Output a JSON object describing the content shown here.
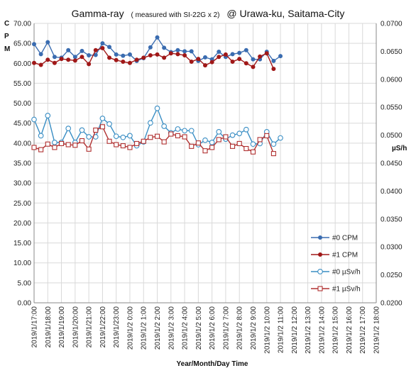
{
  "chart_data": {
    "type": "line",
    "title_prefix": "Gamma-ray",
    "title_note": "( measured with SI-22G x 2)",
    "title_suffix": "@ Urawa-ku, Saitama-City",
    "xlabel": "Year/Month/Day  Time",
    "ylabel_left": [
      "C",
      "P",
      "M"
    ],
    "ylabel_right": "µS/h",
    "ylim_left": [
      0,
      70
    ],
    "ylim_right": [
      0.02,
      0.07
    ],
    "grid": true,
    "legend_position": "lower-right",
    "colors": {
      "cpm0": "#3a6cb0",
      "cpm1": "#a01818",
      "usv0": "#3a8ec4",
      "usv1": "#b03030",
      "grid": "#d9d9d9",
      "axis": "#888888"
    },
    "x_tick_labels": [
      "2019/1/17:00",
      "2019/1/18:00",
      "2019/1/19:00",
      "2019/1/20:00",
      "2019/1/21:00",
      "2019/1/22:00",
      "2019/1/23:00",
      "2019/1/2 0:00",
      "2019/1/2 1:00",
      "2019/1/2 2:00",
      "2019/1/2 3:00",
      "2019/1/2 4:00",
      "2019/1/2 5:00",
      "2019/1/2 6:00",
      "2019/1/2 7:00",
      "2019/1/2 8:00",
      "2019/1/2 9:00",
      "2019/1/2 10:00",
      "2019/1/2 11:00",
      "2019/1/2 12:00",
      "2019/1/2 13:00",
      "2019/1/2 14:00",
      "2019/1/2 15:00",
      "2019/1/2 16:00",
      "2019/1/2 17:00",
      "2019/1/2 18:00"
    ],
    "y_left_ticks": [
      "0.00",
      "5.00",
      "10.00",
      "15.00",
      "20.00",
      "25.00",
      "30.00",
      "35.00",
      "40.00",
      "45.00",
      "50.00",
      "55.00",
      "60.00",
      "65.00",
      "70.00"
    ],
    "y_right_ticks": [
      "0.0200",
      "0.0250",
      "0.0300",
      "0.0350",
      "0.0400",
      "0.0450",
      "0.0500",
      "0.0550",
      "0.0600",
      "0.0650",
      "0.0700"
    ],
    "x_hours": [
      0,
      1,
      2,
      3,
      4,
      5,
      6,
      7,
      8,
      9,
      10,
      11,
      12,
      13,
      14,
      15,
      16,
      17,
      18,
      19,
      20,
      21,
      22,
      23,
      24,
      25,
      26,
      27,
      28,
      29,
      30,
      31,
      32,
      33,
      34,
      35,
      36,
      37,
      38,
      39,
      40,
      41,
      42,
      43,
      44,
      45,
      46,
      47,
      48,
      49,
      50
    ],
    "series": [
      {
        "name": "#0 CPM",
        "axis": "left",
        "marker": "dot",
        "values": [
          64.8,
          62.3,
          65.3,
          61.6,
          61.4,
          63.3,
          61.6,
          63.1,
          62.0,
          62.1,
          65.0,
          64.1,
          62.2,
          61.9,
          62.2,
          60.6,
          61.3,
          64.0,
          66.5,
          63.9,
          62.8,
          63.3,
          63.0,
          63.0,
          60.6,
          61.5,
          61.0,
          62.9,
          61.6,
          62.3,
          62.6,
          63.3,
          61.0,
          61.0,
          62.9,
          60.6,
          61.8
        ]
      },
      {
        "name": "#1 CPM",
        "axis": "left",
        "marker": "dot",
        "values": [
          60.1,
          59.6,
          60.9,
          60.1,
          61.1,
          60.9,
          60.7,
          61.6,
          59.8,
          63.3,
          63.8,
          61.4,
          60.8,
          60.4,
          60.1,
          60.9,
          61.4,
          62.0,
          62.2,
          61.4,
          62.5,
          62.3,
          62.0,
          60.4,
          61.1,
          59.5,
          60.3,
          61.6,
          62.2,
          60.4,
          61.1,
          60.0,
          59.1,
          61.7,
          62.5,
          58.6
        ]
      },
      {
        "name": "#0 µSv/h",
        "axis": "right",
        "marker": "circle",
        "values": [
          0.0528,
          0.0499,
          0.0535,
          0.0487,
          0.0487,
          0.0512,
          0.0487,
          0.0509,
          0.0497,
          0.0497,
          0.053,
          0.052,
          0.0498,
          0.0496,
          0.0499,
          0.0481,
          0.0488,
          0.0522,
          0.0548,
          0.0516,
          0.0504,
          0.0511,
          0.0508,
          0.0508,
          0.0483,
          0.0491,
          0.0487,
          0.0506,
          0.0493,
          0.05,
          0.0503,
          0.051,
          0.0484,
          0.0485,
          0.0506,
          0.0484,
          0.0495
        ]
      },
      {
        "name": "#1 µSv/h",
        "axis": "right",
        "marker": "square",
        "values": [
          0.0478,
          0.0474,
          0.0484,
          0.0478,
          0.0485,
          0.0483,
          0.0482,
          0.049,
          0.0475,
          0.0509,
          0.0515,
          0.0489,
          0.0483,
          0.0481,
          0.0478,
          0.0485,
          0.0489,
          0.0496,
          0.0498,
          0.0488,
          0.0502,
          0.0499,
          0.0497,
          0.048,
          0.0486,
          0.0472,
          0.0478,
          0.0492,
          0.0497,
          0.048,
          0.0485,
          0.0476,
          0.047,
          0.0492,
          0.0499,
          0.0467
        ]
      }
    ]
  }
}
